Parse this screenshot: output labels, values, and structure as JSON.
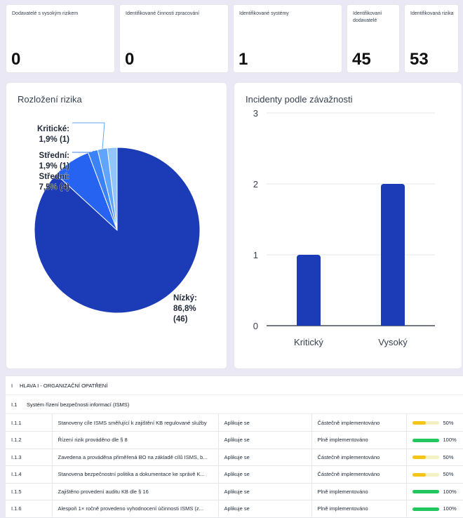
{
  "kpis": [
    {
      "label": "Dodavatelé s vysokým rizikem",
      "value": "0"
    },
    {
      "label": "Identifikované činnosti zpracování",
      "value": "0"
    },
    {
      "label": "Identifikované systémy",
      "value": "1"
    },
    {
      "label": "Identifikovaní dodavatelé",
      "value": "45"
    },
    {
      "label": "Identifikovaná rizika",
      "value": "53"
    }
  ],
  "risk_panel": {
    "title": "Rozložení rizika"
  },
  "incident_panel": {
    "title": "Incidenty podle závažnosti"
  },
  "chart_data": [
    {
      "type": "pie",
      "title": "Rozložení rizika",
      "slices": [
        {
          "label": "Nízký",
          "percent": 86.8,
          "count": 46,
          "text": "Nízký:\n86,8%\n(46)",
          "color": "#1c3bb7"
        },
        {
          "label": "Střední",
          "percent": 7.5,
          "count": 4,
          "text": "Střední:\n7,5% (4)",
          "color": "#2563f0"
        },
        {
          "label": "Střední",
          "percent": 1.9,
          "count": 1,
          "text": "Střední:\n1,9% (1)",
          "color": "#3b82f6"
        },
        {
          "label": "Kritické",
          "percent": 1.9,
          "count": 1,
          "text": "Kritické:\n1,9% (1)",
          "color": "#60a5fa"
        },
        {
          "label": "",
          "percent": 1.9,
          "count": 1,
          "text": "",
          "color": "#93c5fd"
        }
      ]
    },
    {
      "type": "bar",
      "title": "Incidenty podle závažnosti",
      "categories": [
        "Kritický",
        "Vysoký"
      ],
      "values": [
        1,
        2
      ],
      "ylim": [
        0,
        3
      ],
      "yticks": [
        "0",
        "1",
        "2",
        "3"
      ],
      "grid": true,
      "color": "#1c3bb7"
    }
  ],
  "table": {
    "chapter": {
      "code": "I",
      "title": "HLAVA I - ORGANIZAČNÍ OPATŘENÍ"
    },
    "section": {
      "code": "I.1",
      "title": "Systém řízení bezpečnosti informací (ISMS)"
    },
    "rows": [
      {
        "id": "I.1.1",
        "text": "Stanoveny cíle ISMS směřující k zajištění KB regulované služby",
        "applicability": "Aplikuje se",
        "status": "Částečně implementováno",
        "progress": 50,
        "progress_label": "50%",
        "color": "#f5c518"
      },
      {
        "id": "I.1.2",
        "text": "Řízení rizik prováděno dle § 8",
        "applicability": "Aplikuje se",
        "status": "Plně implementováno",
        "progress": 100,
        "progress_label": "100%",
        "color": "#22c55e"
      },
      {
        "id": "I.1.3",
        "text": "Zavedena a prováděna přiměřená BO na základě cílů ISMS, b...",
        "applicability": "Aplikuje se",
        "status": "Částečně implementováno",
        "progress": 50,
        "progress_label": "50%",
        "color": "#f5c518"
      },
      {
        "id": "I.1.4",
        "text": "Stanovena bezpečnostní politika a dokumentace ke správě K...",
        "applicability": "Aplikuje se",
        "status": "Částečně implementováno",
        "progress": 50,
        "progress_label": "50%",
        "color": "#f5c518"
      },
      {
        "id": "I.1.5",
        "text": "Zajištěno provedení auditu KB dle § 16",
        "applicability": "Aplikuje se",
        "status": "Plně implementováno",
        "progress": 100,
        "progress_label": "100%",
        "color": "#22c55e"
      },
      {
        "id": "I.1.6",
        "text": "Alespoň 1× ročně provedeno vyhodnocení účinnosti ISMS (z...",
        "applicability": "Aplikuje se",
        "status": "Plně implementováno",
        "progress": 100,
        "progress_label": "100%",
        "color": "#22c55e"
      }
    ]
  }
}
